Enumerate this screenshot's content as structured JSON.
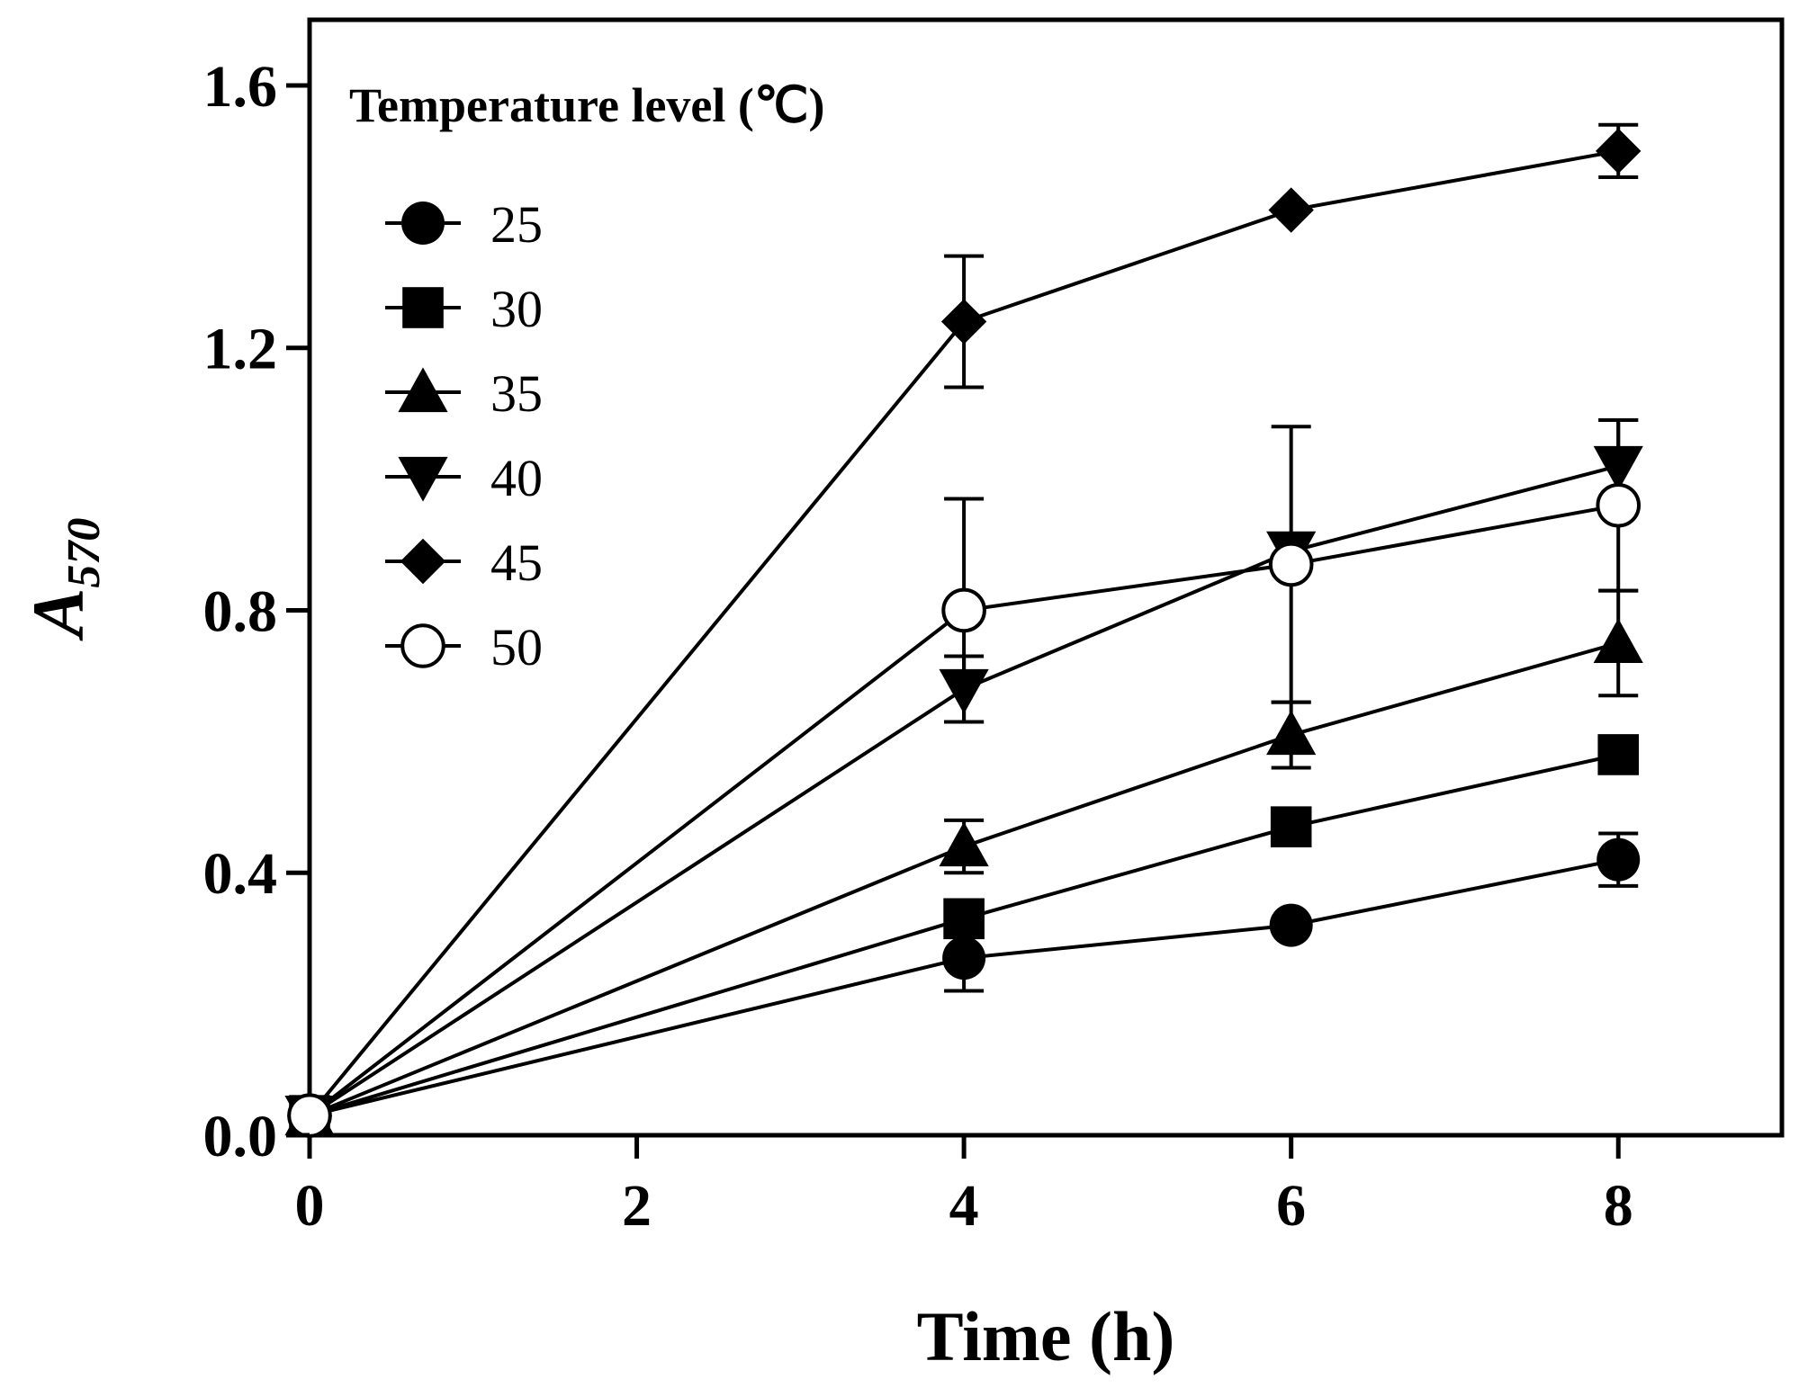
{
  "chart_data": {
    "type": "line",
    "xlabel": "Time (h)",
    "ylabel_main": "A",
    "ylabel_sub": "570",
    "xlim": [
      0,
      9
    ],
    "ylim": [
      0,
      1.7
    ],
    "xticks": [
      0,
      2,
      4,
      6,
      8
    ],
    "xtick_labels": [
      "0",
      "2",
      "4",
      "6",
      "8"
    ],
    "yticks": [
      0,
      0.4,
      0.8,
      1.2,
      1.6
    ],
    "ytick_labels": [
      "0.0",
      "0.4",
      "0.8",
      "1.2",
      "1.6"
    ],
    "grid": false,
    "legend_title": "Temperature level (℃)",
    "legend_position": "top-left",
    "series": [
      {
        "name": "25",
        "marker": "circle",
        "x": [
          0,
          4,
          6,
          8
        ],
        "y": [
          0.03,
          0.27,
          0.32,
          0.42
        ],
        "err": [
          0,
          0.05,
          0,
          0.04
        ]
      },
      {
        "name": "30",
        "marker": "square",
        "x": [
          0,
          4,
          6,
          8
        ],
        "y": [
          0.03,
          0.33,
          0.47,
          0.58
        ],
        "err": [
          0,
          0,
          0,
          0
        ]
      },
      {
        "name": "35",
        "marker": "triangle-up",
        "x": [
          0,
          4,
          6,
          8
        ],
        "y": [
          0.03,
          0.44,
          0.61,
          0.75
        ],
        "err": [
          0,
          0.04,
          0.05,
          0.08
        ]
      },
      {
        "name": "40",
        "marker": "triangle-down",
        "x": [
          0,
          4,
          6,
          8
        ],
        "y": [
          0.03,
          0.68,
          0.89,
          1.02
        ],
        "err": [
          0,
          0.05,
          0.02,
          0.07
        ]
      },
      {
        "name": "45",
        "marker": "diamond",
        "x": [
          0,
          4,
          6,
          8
        ],
        "y": [
          0.03,
          1.24,
          1.41,
          1.5
        ],
        "err": [
          0,
          0.1,
          0,
          0.04
        ]
      },
      {
        "name": "50",
        "marker": "open-circle",
        "x": [
          0,
          4,
          6,
          8
        ],
        "y": [
          0.03,
          0.8,
          0.87,
          0.96
        ],
        "err": [
          0,
          0.17,
          0.21,
          0.13
        ]
      }
    ]
  }
}
